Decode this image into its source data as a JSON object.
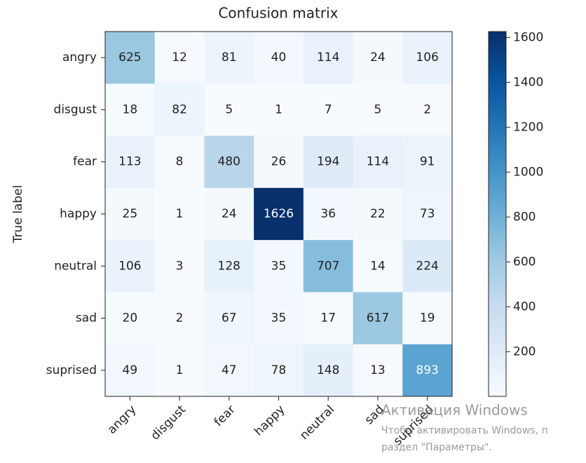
{
  "chart_data": {
    "type": "heatmap",
    "title": "Confusion matrix",
    "y_label": "True label",
    "rows": [
      "angry",
      "disgust",
      "fear",
      "happy",
      "neutral",
      "sad",
      "suprised"
    ],
    "columns": [
      "angry",
      "disgust",
      "fear",
      "happy",
      "neutral",
      "sad",
      "suprised"
    ],
    "values": [
      [
        625,
        12,
        81,
        40,
        114,
        24,
        106
      ],
      [
        18,
        82,
        5,
        1,
        7,
        5,
        2
      ],
      [
        113,
        8,
        480,
        26,
        194,
        114,
        91
      ],
      [
        25,
        1,
        24,
        1626,
        36,
        22,
        73
      ],
      [
        106,
        3,
        128,
        35,
        707,
        14,
        224
      ],
      [
        20,
        2,
        67,
        35,
        17,
        617,
        19
      ],
      [
        49,
        1,
        47,
        78,
        148,
        13,
        893
      ]
    ],
    "colormap": [
      "#f7fbff",
      "#deebf7",
      "#c6dbef",
      "#9ecae1",
      "#6baed6",
      "#4292c6",
      "#2171b5",
      "#08519c",
      "#08306b"
    ],
    "clim": [
      1,
      1626
    ],
    "colorbar_ticks": [
      200,
      400,
      600,
      800,
      1000,
      1200,
      1400,
      1600
    ]
  },
  "watermark": [
    "Активация Windows",
    "Чтобы активировать Windows, п",
    "раздел \"Параметры\"."
  ]
}
